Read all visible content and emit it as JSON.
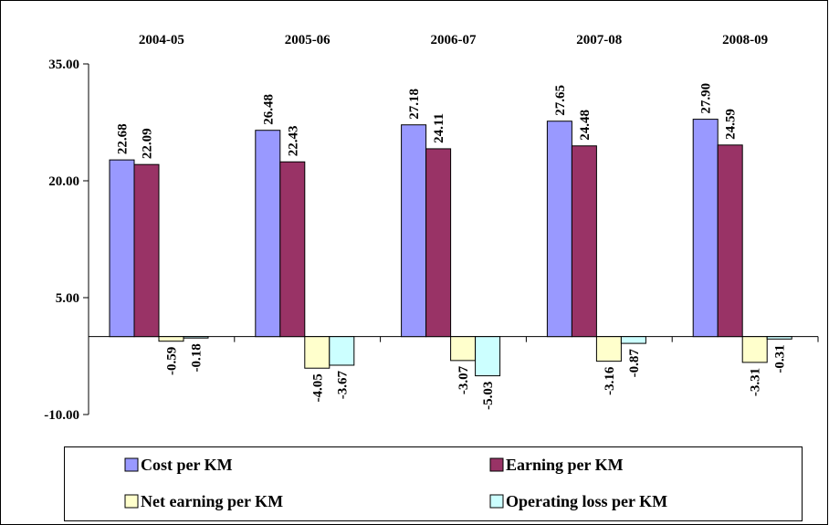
{
  "chart_data": {
    "type": "bar",
    "title": "",
    "xlabel": "",
    "ylabel": "",
    "categories": [
      "2004-05",
      "2005-06",
      "2006-07",
      "2007-08",
      "2008-09"
    ],
    "y_ticks": [
      35.0,
      20.0,
      5.0,
      -10.0
    ],
    "y_tick_labels": [
      "35.00",
      "20.00",
      "5.00",
      "-10.00"
    ],
    "ylim": [
      -10,
      35
    ],
    "grid": false,
    "category_labels_position": "top",
    "legend_position": "bottom",
    "series": [
      {
        "name": "Cost per KM",
        "color": "#9999ff",
        "values": [
          22.68,
          26.48,
          27.18,
          27.65,
          27.9
        ],
        "labels": [
          "22.68",
          "26.48",
          "27.18",
          "27.65",
          "27.90"
        ]
      },
      {
        "name": "Earning per KM",
        "color": "#993366",
        "values": [
          22.09,
          22.43,
          24.11,
          24.48,
          24.59
        ],
        "labels": [
          "22.09",
          "22.43",
          "24.11",
          "24.48",
          "24.59"
        ]
      },
      {
        "name": "Net earning per KM",
        "color": "#ffffcc",
        "values": [
          -0.59,
          -4.05,
          -3.07,
          -3.16,
          -3.31
        ],
        "labels": [
          "-0.59",
          "-4.05",
          "-3.07",
          "-3.16",
          "-3.31"
        ]
      },
      {
        "name": "Operating loss per KM",
        "color": "#ccffff",
        "values": [
          -0.18,
          -3.67,
          -5.03,
          -0.87,
          -0.31
        ],
        "labels": [
          "-0.18",
          "-3.67",
          "-5.03",
          "-0.87",
          "-0.31"
        ]
      }
    ]
  }
}
